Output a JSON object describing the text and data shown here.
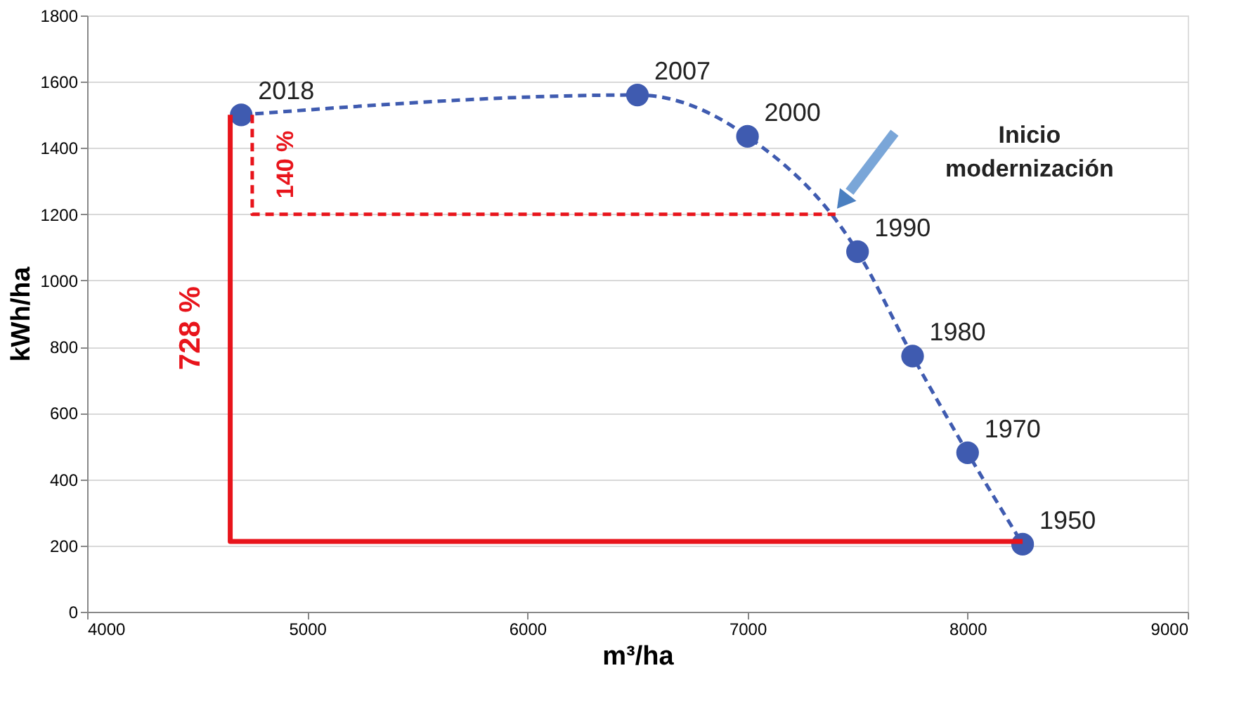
{
  "chart_data": {
    "type": "line",
    "xlabel": "m³/ha",
    "ylabel": "kWh/ha",
    "xlim": [
      4000,
      9000
    ],
    "xticks": [
      4000,
      5000,
      6000,
      7000,
      8000,
      9000
    ],
    "ylim": [
      0,
      1800
    ],
    "yticks": [
      0,
      200,
      400,
      600,
      800,
      1000,
      1200,
      1400,
      1600,
      1800
    ],
    "grid": "y",
    "series": [
      {
        "color": "#3f5bb0",
        "line_style": "dashed",
        "marker": "circle",
        "x": [
          4700,
          6500,
          7000,
          7500,
          7750,
          8000,
          8250
        ],
        "values": [
          1500,
          1560,
          1435,
          1087,
          772,
          480,
          204
        ]
      },
      {
        "color": "#e8141b",
        "line_style": "solid",
        "marker": "none",
        "x": [
          4650,
          4650,
          8250
        ],
        "values": [
          1500,
          212,
          212
        ]
      },
      {
        "color": "#e8141b",
        "line_style": "dashed",
        "marker": "none",
        "x": [
          4750,
          4750,
          7400
        ],
        "values": [
          1500,
          1200,
          1200
        ]
      }
    ],
    "annotations": [
      "728 %",
      "140 %",
      "Inicio modernización",
      {
        "text": "2018",
        "x": 4700,
        "y": 1500
      },
      {
        "text": "2007",
        "x": 6500,
        "y": 1560
      },
      {
        "text": "2000",
        "x": 7000,
        "y": 1435
      },
      {
        "text": "1990",
        "x": 7500,
        "y": 1087
      },
      {
        "text": "1980",
        "x": 7750,
        "y": 772
      },
      {
        "text": "1970",
        "x": 8000,
        "y": 480
      },
      {
        "text": "1950",
        "x": 8250,
        "y": 204
      }
    ]
  }
}
